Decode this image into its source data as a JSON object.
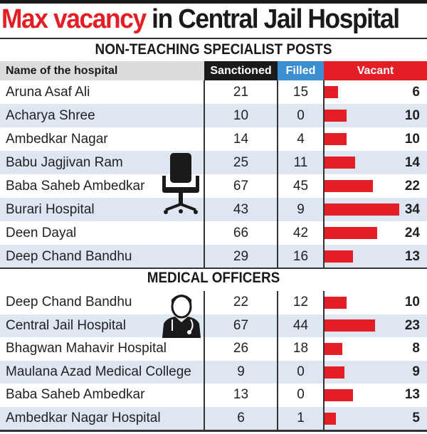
{
  "title": {
    "highlight": "Max vacancy",
    "rest": "in Central Jail Hospital"
  },
  "columns": {
    "name": "Name of the hospital",
    "sanctioned": "Sanctioned",
    "filled": "Filled",
    "vacant": "Vacant"
  },
  "colors": {
    "red": "#e31e24",
    "blue": "#3b8fd0",
    "black": "#1a1a1a"
  },
  "chart_data": {
    "type": "table",
    "sections": [
      {
        "title": "NON-TEACHING SPECIALIST POSTS",
        "rows": [
          {
            "name": "Aruna Asaf Ali",
            "sanctioned": "21",
            "filled": "15",
            "vacant": "6"
          },
          {
            "name": "Acharya Shree",
            "sanctioned": "10",
            "filled": "0",
            "vacant": "10"
          },
          {
            "name": "Ambedkar Nagar",
            "sanctioned": "14",
            "filled": "4",
            "vacant": "10"
          },
          {
            "name": "Babu Jagjivan Ram",
            "sanctioned": "25",
            "filled": "11",
            "vacant": "14"
          },
          {
            "name": "Baba Saheb Ambedkar",
            "sanctioned": "67",
            "filled": "45",
            "vacant": "22"
          },
          {
            "name": "Burari Hospital",
            "sanctioned": "43",
            "filled": "9",
            "vacant": "34"
          },
          {
            "name": "Deen Dayal",
            "sanctioned": "66",
            "filled": "42",
            "vacant": "24"
          },
          {
            "name": "Deep Chand Bandhu",
            "sanctioned": "29",
            "filled": "16",
            "vacant": "13"
          }
        ]
      },
      {
        "title": "MEDICAL OFFICERS",
        "rows": [
          {
            "name": "Deep Chand Bandhu",
            "sanctioned": "22",
            "filled": "12",
            "vacant": "10"
          },
          {
            "name": "Central Jail Hospital",
            "sanctioned": "67",
            "filled": "44",
            "vacant": "23"
          },
          {
            "name": "Bhagwan Mahavir Hospital",
            "sanctioned": "26",
            "filled": "18",
            "vacant": "8"
          },
          {
            "name": "Maulana Azad Medical College",
            "sanctioned": "9",
            "filled": "0",
            "vacant": "9"
          },
          {
            "name": "Baba Saheb Ambedkar",
            "sanctioned": "13",
            "filled": "0",
            "vacant": "13"
          },
          {
            "name": "Ambedkar Nagar Hospital",
            "sanctioned": "6",
            "filled": "1",
            "vacant": "5"
          }
        ]
      }
    ]
  }
}
